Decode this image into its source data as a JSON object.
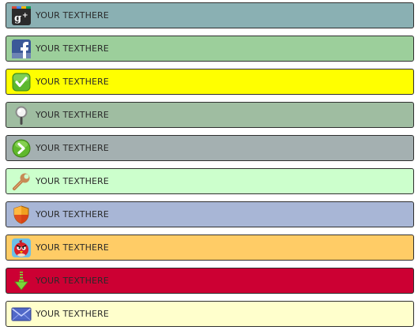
{
  "bars": [
    {
      "label": "YOUR TEXTHERE",
      "color": "#8ab0b3",
      "icon": "google-plus-icon"
    },
    {
      "label": "YOUR TEXTHERE",
      "color": "#9ccf9b",
      "icon": "facebook-icon"
    },
    {
      "label": "YOUR TEXTHERE",
      "color": "#ffff00",
      "icon": "checkmark-icon"
    },
    {
      "label": "YOUR TEXTHERE",
      "color": "#9fbda1",
      "icon": "magnifier-icon"
    },
    {
      "label": "YOUR TEXTHERE",
      "color": "#a4b0b1",
      "icon": "arrow-right-icon"
    },
    {
      "label": "YOUR TEXTHERE",
      "color": "#ccffcc",
      "icon": "wrench-icon"
    },
    {
      "label": "YOUR TEXTHERE",
      "color": "#a8b6d6",
      "icon": "shield-icon"
    },
    {
      "label": "YOUR TEXTHERE",
      "color": "#ffcc66",
      "icon": "angry-bird-icon"
    },
    {
      "label": "YOUR TEXTHERE",
      "color": "#cc0033",
      "icon": "download-arrow-icon"
    },
    {
      "label": "YOUR TEXTHERE",
      "color": "#ffffcc",
      "icon": "envelope-icon"
    }
  ]
}
